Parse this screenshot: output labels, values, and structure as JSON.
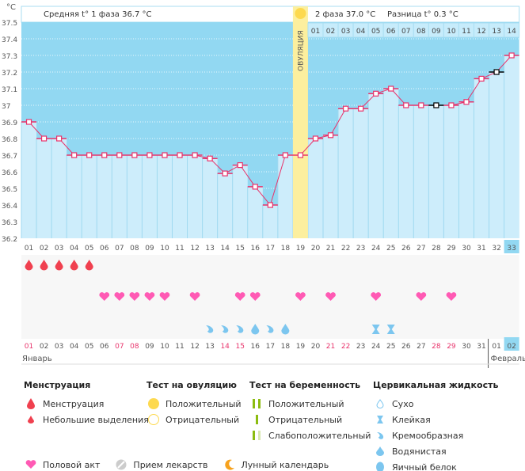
{
  "header": {
    "unit_label": "°C",
    "phase1_avg": "Средняя t° 1 фаза 36.7 °C",
    "phase2_avg": "2 фаза 37.0 °C",
    "diff": "Разница t° 0.3 °C",
    "ovulation_label": "ОВУЛЯЦИЯ"
  },
  "chart_data": {
    "type": "line",
    "title": "Basal body temperature",
    "ylabel": "°C",
    "ylim": [
      36.2,
      37.5
    ],
    "yticks": [
      "37.5",
      "37.4",
      "37.3",
      "37.2",
      "37.1",
      "37",
      "36.9",
      "36.8",
      "36.7",
      "36.6",
      "36.5",
      "36.4",
      "36.3",
      "36.2"
    ],
    "x": [
      "01",
      "02",
      "03",
      "04",
      "05",
      "06",
      "07",
      "08",
      "09",
      "10",
      "11",
      "12",
      "13",
      "14",
      "15",
      "16",
      "17",
      "18",
      "19",
      "20",
      "21",
      "22",
      "23",
      "24",
      "25",
      "26",
      "27",
      "28",
      "29",
      "30",
      "31",
      "32",
      "33"
    ],
    "values": [
      36.9,
      36.8,
      36.8,
      36.7,
      36.7,
      36.7,
      36.7,
      36.7,
      36.7,
      36.7,
      36.7,
      36.7,
      36.68,
      36.59,
      36.64,
      36.51,
      36.4,
      36.7,
      36.7,
      36.8,
      36.82,
      36.98,
      36.98,
      37.07,
      37.1,
      37.0,
      37.0,
      37.0,
      37.0,
      37.02,
      37.16,
      37.2,
      37.3
    ],
    "highlighted_points": [
      28,
      32
    ],
    "ovulation_day": 19,
    "current_day": 33,
    "phase2_day_labels": [
      "01",
      "02",
      "03",
      "04",
      "05",
      "06",
      "07",
      "08",
      "09",
      "10",
      "11",
      "12",
      "13",
      "14"
    ],
    "menstruation_days": [
      1,
      2,
      3,
      4,
      5
    ],
    "intercourse_days": [
      6,
      7,
      8,
      9,
      10,
      12,
      15,
      16,
      19,
      21,
      24,
      27,
      29
    ],
    "cervical_creamy_days": [
      13,
      14,
      15,
      17
    ],
    "cervical_watery_days": [
      16,
      18
    ],
    "cervical_sticky_days": [
      24,
      25
    ],
    "dates": [
      "01",
      "02",
      "03",
      "04",
      "05",
      "06",
      "07",
      "08",
      "09",
      "10",
      "11",
      "12",
      "13",
      "14",
      "15",
      "16",
      "17",
      "18",
      "19",
      "20",
      "21",
      "22",
      "23",
      "24",
      "25",
      "26",
      "27",
      "28",
      "29",
      "30",
      "31",
      "01",
      "02"
    ],
    "highlighted_dates": [
      0,
      6,
      7,
      13,
      14,
      20,
      21,
      27,
      28
    ],
    "month1": "Январь",
    "month2": "Февраль"
  },
  "legend": {
    "menstruation": {
      "title": "Менструация",
      "items": [
        "Менструация",
        "Небольшие выделения"
      ]
    },
    "ovulation_test": {
      "title": "Тест на овуляцию",
      "items": [
        "Положительный",
        "Отрицательный"
      ]
    },
    "pregnancy_test": {
      "title": "Тест на беременность",
      "items": [
        "Положительный",
        "Отрицательный",
        "Слабоположительный"
      ]
    },
    "cervical": {
      "title": "Цервикальная жидкость",
      "items": [
        "Сухо",
        "Клейкая",
        "Кремообразная",
        "Водянистая",
        "Яичный белок"
      ]
    },
    "bottom": [
      "Половой акт",
      "Прием лекарств",
      "Лунный календарь"
    ]
  },
  "colors": {
    "line": "#e8336b",
    "bg_dark": "#92d8f2",
    "bg_light": "#cdedfb",
    "ovulation": "#fcef9e",
    "heart": "#ff5ab4",
    "drop": "#f0404f",
    "cervical": "#7cc6ef",
    "accent_date": "#e8336b"
  }
}
